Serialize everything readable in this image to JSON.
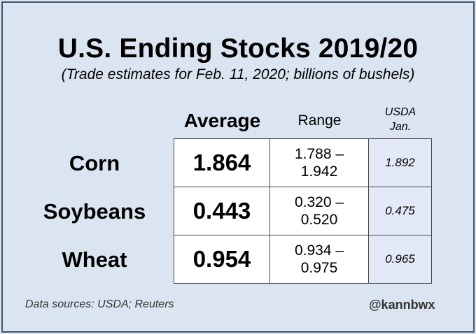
{
  "title": "U.S. Ending Stocks 2019/20",
  "subtitle": "(Trade estimates for Feb. 11, 2020; billions of bushels)",
  "columns": {
    "average": "Average",
    "range": "Range",
    "usda_line1": "USDA",
    "usda_line2": "Jan."
  },
  "rows": [
    {
      "label": "Corn",
      "average": "1.864",
      "range_low": "1.788 –",
      "range_high": "1.942",
      "usda": "1.892"
    },
    {
      "label": "Soybeans",
      "average": "0.443",
      "range_low": "0.320 –",
      "range_high": "0.520",
      "usda": "0.475"
    },
    {
      "label": "Wheat",
      "average": "0.954",
      "range_low": "0.934 –",
      "range_high": "0.975",
      "usda": "0.965"
    }
  ],
  "footer": {
    "sources": "Data sources: USDA; Reuters",
    "handle": "@kannbwx"
  },
  "chart_data": {
    "type": "table",
    "title": "U.S. Ending Stocks 2019/20",
    "subtitle": "(Trade estimates for Feb. 11, 2020; billions of bushels)",
    "columns": [
      "Average",
      "Range",
      "USDA Jan."
    ],
    "categories": [
      "Corn",
      "Soybeans",
      "Wheat"
    ],
    "series": [
      {
        "name": "Average",
        "values": [
          1.864,
          0.443,
          0.954
        ]
      },
      {
        "name": "Range low",
        "values": [
          1.788,
          0.32,
          0.934
        ]
      },
      {
        "name": "Range high",
        "values": [
          1.942,
          0.52,
          0.975
        ]
      },
      {
        "name": "USDA Jan.",
        "values": [
          1.892,
          0.475,
          0.965
        ]
      }
    ]
  },
  "colors": {
    "background": "#dbe5f1",
    "border": "#44546a",
    "usda_cell": "#e3e9f6"
  }
}
